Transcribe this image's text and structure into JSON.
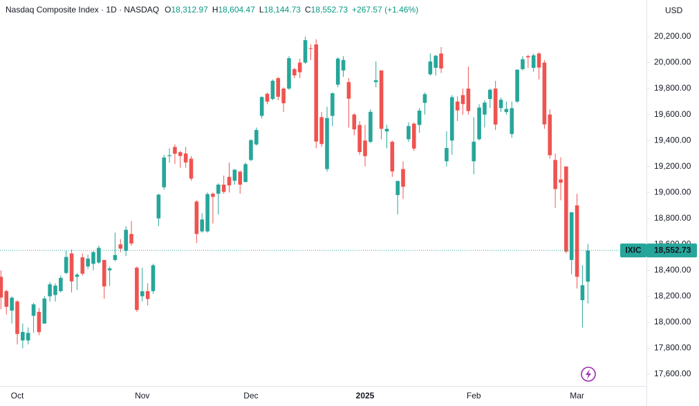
{
  "header": {
    "title": "Nasdaq Composite Index · 1D · NASDAQ",
    "ohlc": [
      {
        "prefix": "O",
        "value": "18,312.97"
      },
      {
        "prefix": "H",
        "value": "18,604.47"
      },
      {
        "prefix": "L",
        "value": "18,144.73"
      },
      {
        "prefix": "C",
        "value": "18,552.73"
      }
    ],
    "change": "+267.57 (+1.46%)"
  },
  "chart_data": {
    "type": "candlestick",
    "currency": "USD",
    "up_color": "#26a69a",
    "down_color": "#ef5350",
    "grid": false,
    "categories": [
      null,
      null,
      null,
      "Oct",
      null,
      null,
      null,
      null,
      null,
      null,
      null,
      null,
      null,
      null,
      null,
      null,
      null,
      null,
      null,
      null,
      null,
      null,
      null,
      null,
      null,
      null,
      "Nov",
      null,
      null,
      null,
      null,
      null,
      null,
      null,
      null,
      null,
      null,
      null,
      null,
      null,
      null,
      null,
      null,
      null,
      null,
      null,
      "Dec",
      null,
      null,
      null,
      null,
      null,
      null,
      null,
      null,
      null,
      null,
      null,
      null,
      null,
      null,
      null,
      null,
      null,
      null,
      null,
      null,
      "2025",
      null,
      null,
      null,
      null,
      null,
      null,
      null,
      null,
      null,
      null,
      null,
      null,
      null,
      null,
      null,
      null,
      null,
      null,
      null,
      "Feb",
      null,
      null,
      null,
      null,
      null,
      null,
      null,
      null,
      null,
      null,
      null,
      null,
      null,
      null,
      null,
      null,
      null,
      null,
      "Mar",
      null,
      null
    ],
    "open": [
      18350,
      18240,
      18090,
      18160,
      17860,
      17860,
      18050,
      18080,
      17990,
      18200,
      18210,
      18240,
      18380,
      18530,
      18350,
      18500,
      18430,
      18450,
      18460,
      18480,
      18400,
      18480,
      18600,
      18550,
      18680,
      18420,
      18200,
      18240,
      18240,
      18800,
      19040,
      19280,
      19350,
      19310,
      19300,
      19260,
      18930,
      18700,
      18700,
      18990,
      18990,
      19060,
      19120,
      19090,
      19160,
      19080,
      19250,
      19370,
      19590,
      19760,
      19720,
      19880,
      19800,
      19800,
      19950,
      20000,
      20000,
      20110,
      20140,
      19580,
      19180,
      19590,
      19830,
      19940,
      19850,
      19600,
      19520,
      19400,
      19390,
      19850,
      19940,
      19470,
      19390,
      18980,
      19180,
      19410,
      19530,
      19520,
      19690,
      19910,
      19960,
      20070,
      19240,
      19400,
      19700,
      19750,
      19800,
      19240,
      19410,
      19600,
      19720,
      19800,
      19650,
      19620,
      19450,
      19700,
      19950,
      20050,
      19960,
      20070,
      20000,
      19600,
      19250,
      19100,
      19200,
      18480,
      18900,
      18170,
      18312.97
    ],
    "high": [
      18400,
      18250,
      18200,
      18170,
      17990,
      17960,
      18150,
      18110,
      18200,
      18310,
      18300,
      18360,
      18550,
      18560,
      18380,
      18530,
      18520,
      18550,
      18590,
      18480,
      18430,
      18690,
      18640,
      18740,
      18780,
      18430,
      18420,
      18300,
      18450,
      18990,
      19290,
      19340,
      19370,
      19320,
      19350,
      19280,
      18940,
      18840,
      19000,
      19000,
      19070,
      19130,
      19230,
      19180,
      19170,
      19230,
      19410,
      19500,
      19740,
      19770,
      19870,
      19890,
      19810,
      20050,
      19960,
      20030,
      20200,
      20140,
      20180,
      19620,
      19660,
      19770,
      20040,
      20050,
      19880,
      19610,
      19550,
      19520,
      19640,
      20010,
      19940,
      19520,
      19400,
      19090,
      19240,
      19540,
      19540,
      19650,
      19770,
      20070,
      20060,
      20120,
      19470,
      19750,
      19740,
      19800,
      19970,
      19580,
      19680,
      19710,
      19800,
      19860,
      19730,
      19700,
      19700,
      19950,
      20050,
      20060,
      20070,
      20080,
      20020,
      19640,
      19300,
      19270,
      19200,
      18850,
      18990,
      18440,
      18604.47
    ],
    "low": [
      18100,
      18060,
      17990,
      17830,
      17800,
      17830,
      17920,
      17900,
      17990,
      18160,
      18160,
      18230,
      18370,
      18230,
      18250,
      18360,
      18410,
      18400,
      18450,
      18180,
      18280,
      18470,
      18540,
      18510,
      18590,
      18080,
      18160,
      18130,
      18220,
      18740,
      19020,
      19230,
      19220,
      19190,
      19190,
      19090,
      18610,
      18690,
      18690,
      18760,
      18830,
      18990,
      19000,
      19060,
      18990,
      19080,
      19240,
      19360,
      19570,
      19680,
      19710,
      19710,
      19620,
      19790,
      19880,
      19880,
      19990,
      20020,
      19340,
      19350,
      19160,
      19510,
      19810,
      19890,
      19500,
      19440,
      19290,
      19200,
      19380,
      19810,
      19410,
      19340,
      19120,
      18830,
      18950,
      19390,
      19320,
      19460,
      19600,
      19900,
      19900,
      19920,
      19200,
      19290,
      19550,
      19600,
      19600,
      19140,
      19400,
      19500,
      19650,
      19480,
      19620,
      19600,
      19420,
      19690,
      19940,
      19960,
      19930,
      19870,
      19490,
      19260,
      18880,
      18940,
      18530,
      18370,
      18260,
      17960,
      18144.73
    ],
    "close": [
      18190,
      18119,
      18189,
      17910,
      17925,
      17918,
      18138,
      17924,
      18183,
      18292,
      18282,
      18342,
      18503,
      18315,
      18367,
      18374,
      18490,
      18540,
      18573,
      18276,
      18415,
      18518,
      18567,
      18712,
      18607,
      18095,
      18239,
      18179,
      18439,
      18983,
      19269,
      19287,
      19298,
      19281,
      19231,
      19107,
      18680,
      18792,
      18987,
      18966,
      19060,
      19004,
      19054,
      19175,
      19060,
      19218,
      19403,
      19481,
      19735,
      19700,
      19860,
      19737,
      19687,
      20034,
      19902,
      19926,
      20173,
      20109,
      19392,
      19373,
      19573,
      19764,
      20031,
      20020,
      19722,
      19486,
      19311,
      19280,
      19621,
      19864,
      19490,
      19490,
      19162,
      19088,
      19044,
      19511,
      19338,
      19630,
      19757,
      20009,
      20053,
      19955,
      19342,
      19734,
      19632,
      19681,
      19627,
      19391,
      19654,
      19692,
      19791,
      19523,
      19714,
      19643,
      19649,
      19945,
      20026,
      20041,
      20056,
      19962,
      19524,
      19287,
      19026,
      19075,
      18544,
      18847,
      18350,
      18285,
      18552.73
    ],
    "ylim": [
      17520,
      20350
    ],
    "yticks": [
      {
        "value": 17600,
        "label": "17,600.00"
      },
      {
        "value": 17800,
        "label": "17,800.00"
      },
      {
        "value": 18000,
        "label": "18,000.00"
      },
      {
        "value": 18200,
        "label": "18,200.00"
      },
      {
        "value": 18400,
        "label": "18,400.00"
      },
      {
        "value": 18600,
        "label": "18,600.00"
      },
      {
        "value": 18800,
        "label": "18,800.00"
      },
      {
        "value": 19000,
        "label": "19,000.00"
      },
      {
        "value": 19200,
        "label": "19,200.00"
      },
      {
        "value": 19400,
        "label": "19,400.00"
      },
      {
        "value": 19600,
        "label": "19,600.00"
      },
      {
        "value": 19800,
        "label": "19,800.00"
      },
      {
        "value": 20000,
        "label": "20,000.00"
      },
      {
        "value": 20200,
        "label": "20,200.00"
      }
    ],
    "last_price": {
      "symbol": "IXIC",
      "value": 18552.73,
      "label": "18,552.73"
    }
  }
}
